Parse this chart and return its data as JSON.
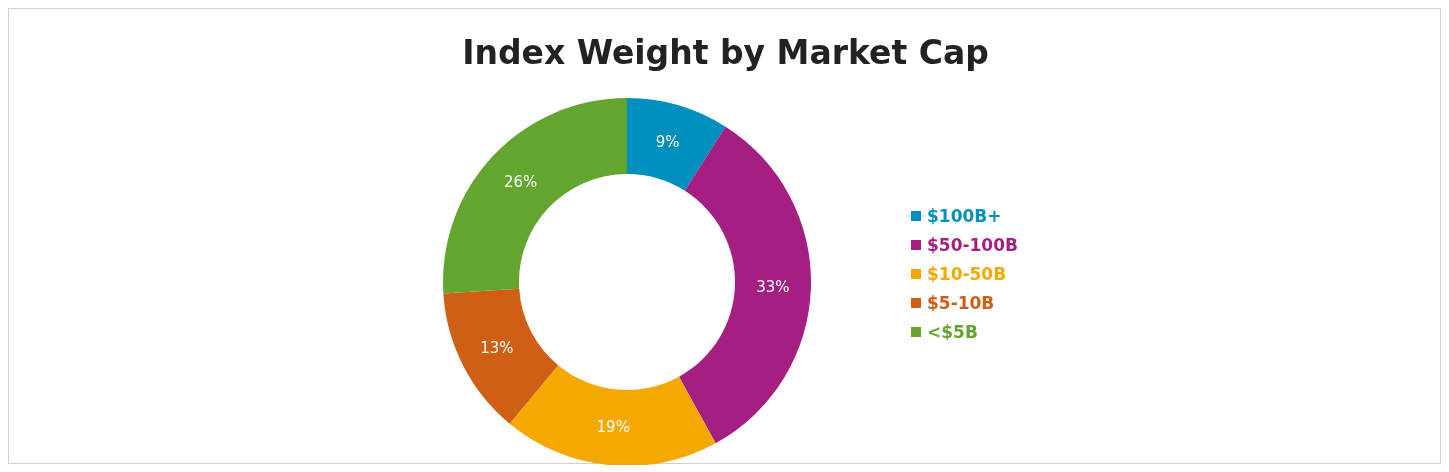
{
  "chart_data": {
    "type": "donut",
    "title": "Index Weight by Market Cap",
    "categories": [
      "$100B+",
      "$50-100B",
      "$10-50B",
      "$5-10B",
      "<$5B"
    ],
    "values": [
      9,
      33,
      19,
      13,
      26
    ],
    "colors": [
      "#008fbe",
      "#a51e82",
      "#f5a800",
      "#d05f16",
      "#62a630"
    ],
    "value_labels": [
      "9%",
      "33%",
      "19%",
      "13%",
      "26%"
    ],
    "legend": "right"
  }
}
